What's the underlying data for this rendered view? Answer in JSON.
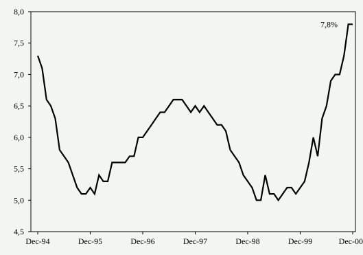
{
  "chart_data": {
    "type": "line",
    "title": "",
    "xlabel": "",
    "ylabel": "",
    "ylim": [
      4.5,
      8.0
    ],
    "yticks": [
      "4,5",
      "5,0",
      "5,5",
      "6,0",
      "6,5",
      "7,0",
      "7,5",
      "8,0"
    ],
    "ytick_values": [
      4.5,
      5.0,
      5.5,
      6.0,
      6.5,
      7.0,
      7.5,
      8.0
    ],
    "xticks": [
      "Dec-94",
      "Dec-95",
      "Dec-96",
      "Dec-97",
      "Dec-98",
      "Dec-99",
      "Dec-00"
    ],
    "grid": false,
    "line_color": "#000000",
    "series": [
      {
        "x_start": "Dec-94",
        "frequency": "monthly",
        "values": [
          7.3,
          7.1,
          6.6,
          6.5,
          6.3,
          5.8,
          5.7,
          5.6,
          5.4,
          5.2,
          5.1,
          5.1,
          5.2,
          5.1,
          5.4,
          5.3,
          5.3,
          5.6,
          5.6,
          5.6,
          5.6,
          5.7,
          5.7,
          6.0,
          6.0,
          6.1,
          6.2,
          6.3,
          6.4,
          6.4,
          6.5,
          6.6,
          6.6,
          6.6,
          6.5,
          6.4,
          6.5,
          6.4,
          6.5,
          6.4,
          6.3,
          6.2,
          6.2,
          6.1,
          5.8,
          5.7,
          5.6,
          5.4,
          5.3,
          5.2,
          5.0,
          5.0,
          5.4,
          5.1,
          5.1,
          5.0,
          5.1,
          5.2,
          5.2,
          5.1,
          5.2,
          5.3,
          5.6,
          6.0,
          5.7,
          6.3,
          6.5,
          6.9,
          7.0,
          7.0,
          7.3,
          7.8,
          7.8
        ]
      }
    ],
    "annotations": [
      {
        "text": "7,8%",
        "x": "Dec-00",
        "y": 7.8
      }
    ]
  }
}
